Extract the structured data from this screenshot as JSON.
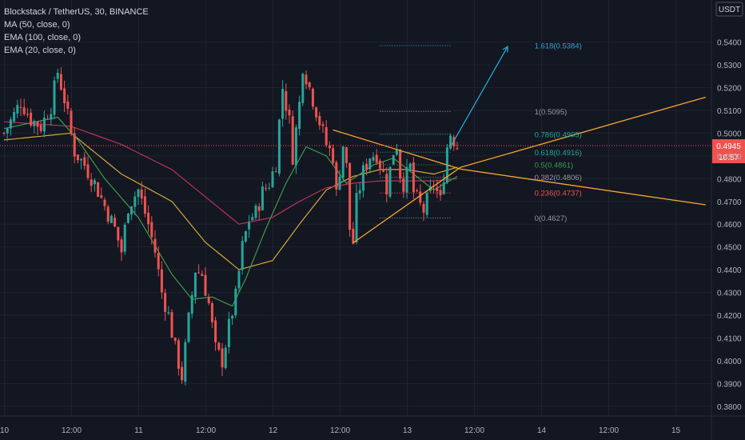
{
  "header": {
    "title": "Blockstack / TetherUS, 30, BINANCE",
    "indicators": [
      "MA (50, close, 0)",
      "EMA (100, close, 0)",
      "EMA (20, close, 0)"
    ]
  },
  "price_axis": {
    "currency": "USDT",
    "current_price": "0.4945",
    "countdown": "10:57"
  },
  "colors": {
    "background": "#131722",
    "grid": "#1e2330",
    "up": "#26a69a",
    "down": "#ef5350",
    "ma50": "#d4a83a",
    "ema100": "#b8325a",
    "ema20": "#3e9a4a",
    "triangle": "#f6a531",
    "fib_arrow": "#2ba6cf",
    "price_line": "#ef5350"
  },
  "chart_data": {
    "type": "candlestick",
    "title": "Blockstack / TetherUS, 30, BINANCE",
    "xlabel": "",
    "ylabel": "",
    "ylim": [
      0.3757,
      0.5585
    ],
    "x_tick_labels": [
      "10",
      "12:00",
      "11",
      "12:00",
      "12",
      "12:00",
      "13",
      "12:00",
      "14",
      "12:00",
      "15"
    ],
    "y_tick_labels": [
      "0.5400",
      "0.5300",
      "0.5200",
      "0.5100",
      "0.5000",
      "0.4900",
      "0.4800",
      "0.4700",
      "0.4600",
      "0.4500",
      "0.4400",
      "0.4300",
      "0.4200",
      "0.4100",
      "0.4000",
      "0.3900",
      "0.3800"
    ],
    "candle_count": 136,
    "last_price": 0.4945,
    "close_path": [
      [
        0,
        0.5
      ],
      [
        3,
        0.508
      ],
      [
        5,
        0.514
      ],
      [
        8,
        0.506
      ],
      [
        11,
        0.503
      ],
      [
        14,
        0.512
      ],
      [
        16,
        0.527
      ],
      [
        18,
        0.515
      ],
      [
        21,
        0.492
      ],
      [
        24,
        0.486
      ],
      [
        27,
        0.478
      ],
      [
        30,
        0.468
      ],
      [
        33,
        0.458
      ],
      [
        35,
        0.448
      ],
      [
        37,
        0.468
      ],
      [
        40,
        0.475
      ],
      [
        43,
        0.46
      ],
      [
        45,
        0.448
      ],
      [
        47,
        0.43
      ],
      [
        49,
        0.42
      ],
      [
        51,
        0.405
      ],
      [
        53,
        0.393
      ],
      [
        55,
        0.418
      ],
      [
        57,
        0.44
      ],
      [
        59,
        0.438
      ],
      [
        61,
        0.425
      ],
      [
        63,
        0.405
      ],
      [
        65,
        0.4
      ],
      [
        67,
        0.415
      ],
      [
        69,
        0.428
      ],
      [
        71,
        0.45
      ],
      [
        73,
        0.462
      ],
      [
        75,
        0.465
      ],
      [
        77,
        0.474
      ],
      [
        79,
        0.478
      ],
      [
        81,
        0.487
      ],
      [
        82,
        0.505
      ],
      [
        83,
        0.52
      ],
      [
        85,
        0.505
      ],
      [
        86,
        0.49
      ],
      [
        88,
        0.513
      ],
      [
        89,
        0.53
      ],
      [
        91,
        0.52
      ],
      [
        93,
        0.51
      ],
      [
        95,
        0.5
      ],
      [
        96,
        0.495
      ],
      [
        98,
        0.49
      ],
      [
        99,
        0.473
      ],
      [
        101,
        0.495
      ],
      [
        102,
        0.485
      ],
      [
        103,
        0.458
      ],
      [
        104,
        0.452
      ],
      [
        105,
        0.47
      ],
      [
        107,
        0.483
      ],
      [
        109,
        0.49
      ],
      [
        111,
        0.491
      ],
      [
        113,
        0.482
      ],
      [
        114,
        0.476
      ],
      [
        116,
        0.492
      ],
      [
        117,
        0.495
      ],
      [
        118,
        0.482
      ],
      [
        119,
        0.478
      ],
      [
        121,
        0.485
      ],
      [
        122,
        0.474
      ],
      [
        124,
        0.468
      ],
      [
        125,
        0.466
      ],
      [
        127,
        0.474
      ],
      [
        128,
        0.478
      ],
      [
        130,
        0.47
      ],
      [
        131,
        0.482
      ],
      [
        132,
        0.494
      ],
      [
        133,
        0.5
      ],
      [
        134,
        0.497
      ],
      [
        135,
        0.4945
      ]
    ],
    "indicator_paths": {
      "MA (50, close, 0)": [
        [
          0,
          0.497
        ],
        [
          20,
          0.5
        ],
        [
          35,
          0.482
        ],
        [
          50,
          0.47
        ],
        [
          60,
          0.452
        ],
        [
          70,
          0.44
        ],
        [
          80,
          0.444
        ],
        [
          88,
          0.46
        ],
        [
          96,
          0.475
        ],
        [
          104,
          0.481
        ],
        [
          112,
          0.484
        ],
        [
          120,
          0.484
        ],
        [
          128,
          0.482
        ],
        [
          135,
          0.485
        ]
      ],
      "EMA (100, close, 0)": [
        [
          0,
          0.505
        ],
        [
          20,
          0.503
        ],
        [
          35,
          0.495
        ],
        [
          50,
          0.484
        ],
        [
          60,
          0.472
        ],
        [
          70,
          0.46
        ],
        [
          80,
          0.463
        ],
        [
          88,
          0.47
        ],
        [
          96,
          0.476
        ],
        [
          104,
          0.478
        ],
        [
          112,
          0.479
        ],
        [
          120,
          0.479
        ],
        [
          128,
          0.479
        ],
        [
          135,
          0.48
        ]
      ],
      "EMA (20, close, 0)": [
        [
          0,
          0.502
        ],
        [
          16,
          0.507
        ],
        [
          22,
          0.497
        ],
        [
          30,
          0.48
        ],
        [
          40,
          0.463
        ],
        [
          50,
          0.438
        ],
        [
          56,
          0.427
        ],
        [
          62,
          0.428
        ],
        [
          68,
          0.424
        ],
        [
          72,
          0.436
        ],
        [
          78,
          0.458
        ],
        [
          84,
          0.478
        ],
        [
          90,
          0.494
        ],
        [
          96,
          0.49
        ],
        [
          102,
          0.478
        ],
        [
          110,
          0.486
        ],
        [
          116,
          0.489
        ],
        [
          122,
          0.482
        ],
        [
          128,
          0.475
        ],
        [
          135,
          0.481
        ]
      ]
    },
    "drawings": {
      "triangle_upper": [
        [
          98,
          0.5014
        ],
        [
          136,
          0.4842
        ]
      ],
      "triangle_lower": [
        [
          104,
          0.4518
        ],
        [
          136,
          0.485
        ]
      ],
      "trendline_upper_extension": [
        [
          136,
          0.4842
        ],
        [
          209,
          0.4685
        ]
      ],
      "trendline_lower_extension": [
        [
          136,
          0.485
        ],
        [
          209,
          0.5158
        ]
      ],
      "arrow": [
        [
          133,
          0.494
        ],
        [
          150,
          0.538
        ]
      ]
    },
    "fibonacci_levels": [
      {
        "label": "1.618",
        "value": "0.5384",
        "color": "#2ba6cf"
      },
      {
        "label": "1",
        "value": "0.5095",
        "color": "#9598a1"
      },
      {
        "label": "0.786",
        "value": "0.4995",
        "color": "#26a69a"
      },
      {
        "label": "0.618",
        "value": "0.4916",
        "color": "#26a69a"
      },
      {
        "label": "0.5",
        "value": "0.4861",
        "color": "#3e9a4a"
      },
      {
        "label": "0.382",
        "value": "0.4806",
        "color": "#9598a1"
      },
      {
        "label": "0.236",
        "value": "0.4737",
        "color": "#ef5350"
      },
      {
        "label": "0",
        "value": "0.4627",
        "color": "#9598a1"
      }
    ]
  }
}
